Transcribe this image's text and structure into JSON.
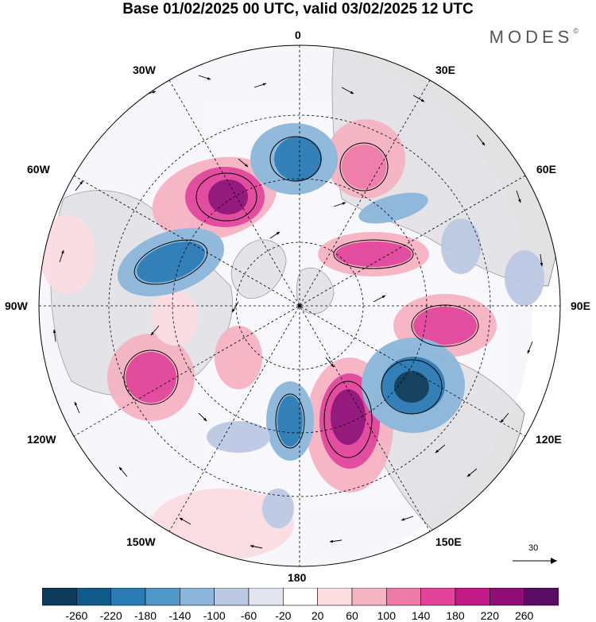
{
  "title": "Base 01/02/2025 00 UTC, valid 03/02/2025 12 UTC",
  "brand": "MODES",
  "brand_mark": "©",
  "longitude_labels": {
    "top": "0",
    "top_right": "30E",
    "right_upper": "60E",
    "right": "90E",
    "right_lower": "120E",
    "bottom_right": "150E",
    "bottom": "180",
    "bottom_left": "150W",
    "left_lower": "120W",
    "left": "90W",
    "left_upper": "60W",
    "top_left": "30W"
  },
  "reference_vector_label": "30",
  "colorbar": {
    "ticks": [
      "-260",
      "-220",
      "-180",
      "-140",
      "-100",
      "-60",
      "-20",
      "20",
      "60",
      "100",
      "140",
      "180",
      "220",
      "260"
    ],
    "colors": [
      "#0c3b5c",
      "#0f5a8a",
      "#2a7ab5",
      "#4f97c8",
      "#8bb6da",
      "#bcc9e3",
      "#e3e4f1",
      "#ffffff",
      "#fbdde2",
      "#f6b3c3",
      "#ef7aa8",
      "#e2449a",
      "#bf1a85",
      "#8f0e78",
      "#5a0b63"
    ]
  },
  "colors": {
    "land": "#e2e2e2",
    "land_edge": "#7a7a7a"
  }
}
